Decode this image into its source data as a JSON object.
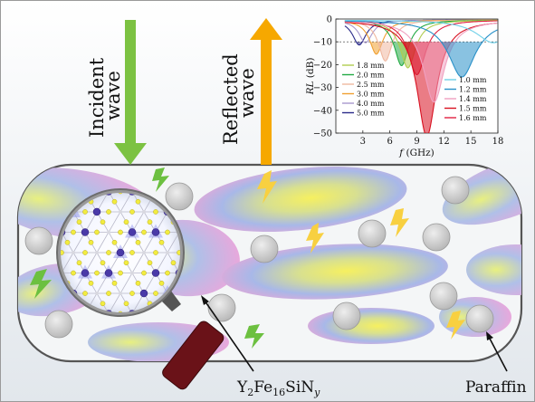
{
  "labels": {
    "incident": [
      "Incident",
      "wave"
    ],
    "reflected": [
      "Reflected",
      "wave"
    ],
    "material": {
      "base": "Y",
      "s1": "2",
      "mid1": "Fe",
      "s2": "16",
      "mid2": "SiN",
      "s3": "y"
    },
    "paraffin": "Paraffin"
  },
  "colors": {
    "incident_arrow": "#7cc242",
    "reflected_arrow": "#f6a800",
    "container_stroke": "#555555",
    "bg_gradient_top": "#e6ebef",
    "blob_pink": "#e8a8d8",
    "blob_blue": "#a8b8e8",
    "blob_yellow": "#f0ec70",
    "sphere_gray": "#c8c8c8",
    "magnifier_handle": "#6a1218"
  },
  "chart_data": {
    "type": "line",
    "title": "",
    "xlabel": "f (GHz)",
    "ylabel": "RL (dB)",
    "xlim": [
      0,
      18
    ],
    "ylim": [
      -50,
      0
    ],
    "xticks": [
      3,
      6,
      9,
      12,
      15,
      18
    ],
    "yticks": [
      0,
      -10,
      -20,
      -30,
      -40,
      -50
    ],
    "threshold": -10,
    "grid": false,
    "legend_left": [
      "1.8 mm",
      "2.0 mm",
      "2.5 mm",
      "3.0 mm",
      "4.0 mm",
      "5.0 mm"
    ],
    "legend_right": [
      "1.0 mm",
      "1.2 mm",
      "1.4 mm",
      "1.5 mm",
      "1.6 mm"
    ],
    "series": [
      {
        "name": "5.0 mm",
        "color": "#2b2b8a",
        "min_f": 2.6,
        "min_rl": -11
      },
      {
        "name": "4.0 mm",
        "color": "#a898cc",
        "min_f": 3.3,
        "min_rl": -10
      },
      {
        "name": "3.0 mm",
        "color": "#f0a030",
        "min_f": 4.5,
        "min_rl": -15
      },
      {
        "name": "2.5 mm",
        "color": "#f0b8a0",
        "min_f": 5.5,
        "min_rl": -18
      },
      {
        "name": "2.0 mm",
        "color": "#22aa44",
        "min_f": 7.3,
        "min_rl": -20
      },
      {
        "name": "1.8 mm",
        "color": "#b0cc50",
        "min_f": 8.0,
        "min_rl": -21
      },
      {
        "name": "1.6 mm",
        "color": "#e02040",
        "min_f": 9.0,
        "min_rl": -24
      },
      {
        "name": "1.5 mm",
        "color": "#d81020",
        "min_f": 10.1,
        "min_rl": -51
      },
      {
        "name": "1.4 mm",
        "color": "#f0a0c0",
        "min_f": 10.9,
        "min_rl": -36
      },
      {
        "name": "1.2 mm",
        "color": "#2890c8",
        "min_f": 14.0,
        "min_rl": -25
      },
      {
        "name": "1.0 mm",
        "color": "#70d0e8",
        "min_f": 17.5,
        "min_rl": -10
      }
    ]
  }
}
